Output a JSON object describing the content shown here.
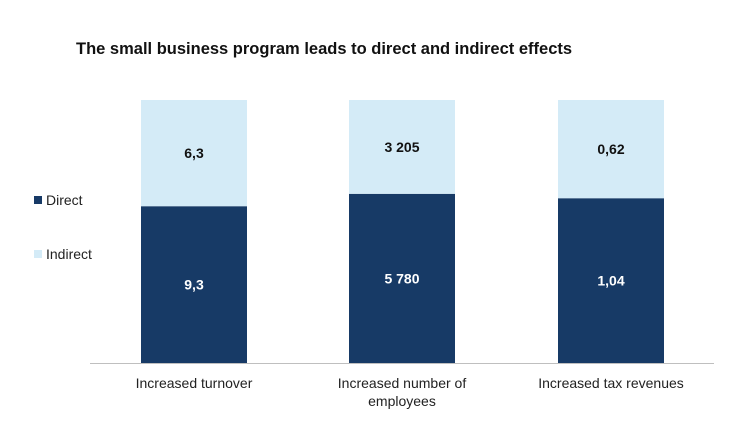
{
  "chart_data": {
    "type": "bar",
    "stacked": true,
    "normalized": true,
    "title": "The small business program leads to direct and indirect effects",
    "categories": [
      [
        "Increased turnover"
      ],
      [
        "Increased number of",
        "employees"
      ],
      [
        "Increased tax revenues"
      ]
    ],
    "series": [
      {
        "name": "Direct",
        "values": [
          9.3,
          5780,
          1.04
        ],
        "labels": [
          "9,3",
          "5 780",
          "1,04"
        ]
      },
      {
        "name": "Indirect",
        "values": [
          6.3,
          3205,
          0.62
        ],
        "labels": [
          "6,3",
          "3 205",
          "0,62"
        ]
      }
    ],
    "legend_position": "left",
    "grid": false,
    "colors": {
      "Direct": "#173a66",
      "Indirect": "#d4ebf7",
      "axis": "#bfbfbf"
    }
  }
}
